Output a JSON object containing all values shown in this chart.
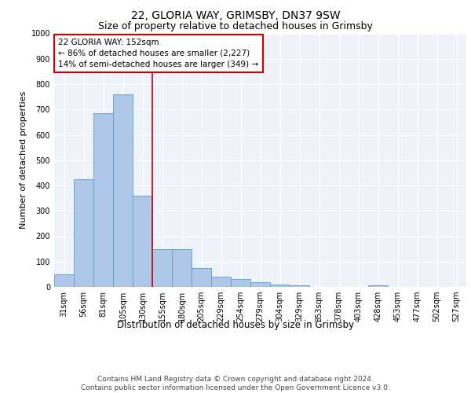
{
  "title_line1": "22, GLORIA WAY, GRIMSBY, DN37 9SW",
  "title_line2": "Size of property relative to detached houses in Grimsby",
  "xlabel": "Distribution of detached houses by size in Grimsby",
  "ylabel": "Number of detached properties",
  "categories": [
    "31sqm",
    "56sqm",
    "81sqm",
    "105sqm",
    "130sqm",
    "155sqm",
    "180sqm",
    "205sqm",
    "229sqm",
    "254sqm",
    "279sqm",
    "304sqm",
    "329sqm",
    "353sqm",
    "378sqm",
    "403sqm",
    "428sqm",
    "453sqm",
    "477sqm",
    "502sqm",
    "527sqm"
  ],
  "values": [
    50,
    425,
    685,
    760,
    360,
    150,
    150,
    75,
    40,
    30,
    20,
    10,
    5,
    0,
    0,
    0,
    5,
    0,
    0,
    0,
    0
  ],
  "bar_color": "#aec6e8",
  "bar_edge_color": "#5a9fd4",
  "background_color": "#eef2f9",
  "grid_color": "#ffffff",
  "vline_x": 4.5,
  "vline_color": "#cc0000",
  "annotation_box_text": "22 GLORIA WAY: 152sqm\n← 86% of detached houses are smaller (2,227)\n14% of semi-detached houses are larger (349) →",
  "annotation_box_color": "#cc0000",
  "annotation_fontsize": 7.5,
  "ylim": [
    0,
    1000
  ],
  "yticks": [
    0,
    100,
    200,
    300,
    400,
    500,
    600,
    700,
    800,
    900,
    1000
  ],
  "footer_line1": "Contains HM Land Registry data © Crown copyright and database right 2024.",
  "footer_line2": "Contains public sector information licensed under the Open Government Licence v3.0.",
  "title_fontsize": 10,
  "subtitle_fontsize": 9,
  "xlabel_fontsize": 8.5,
  "ylabel_fontsize": 8,
  "tick_fontsize": 7,
  "footer_fontsize": 6.5
}
